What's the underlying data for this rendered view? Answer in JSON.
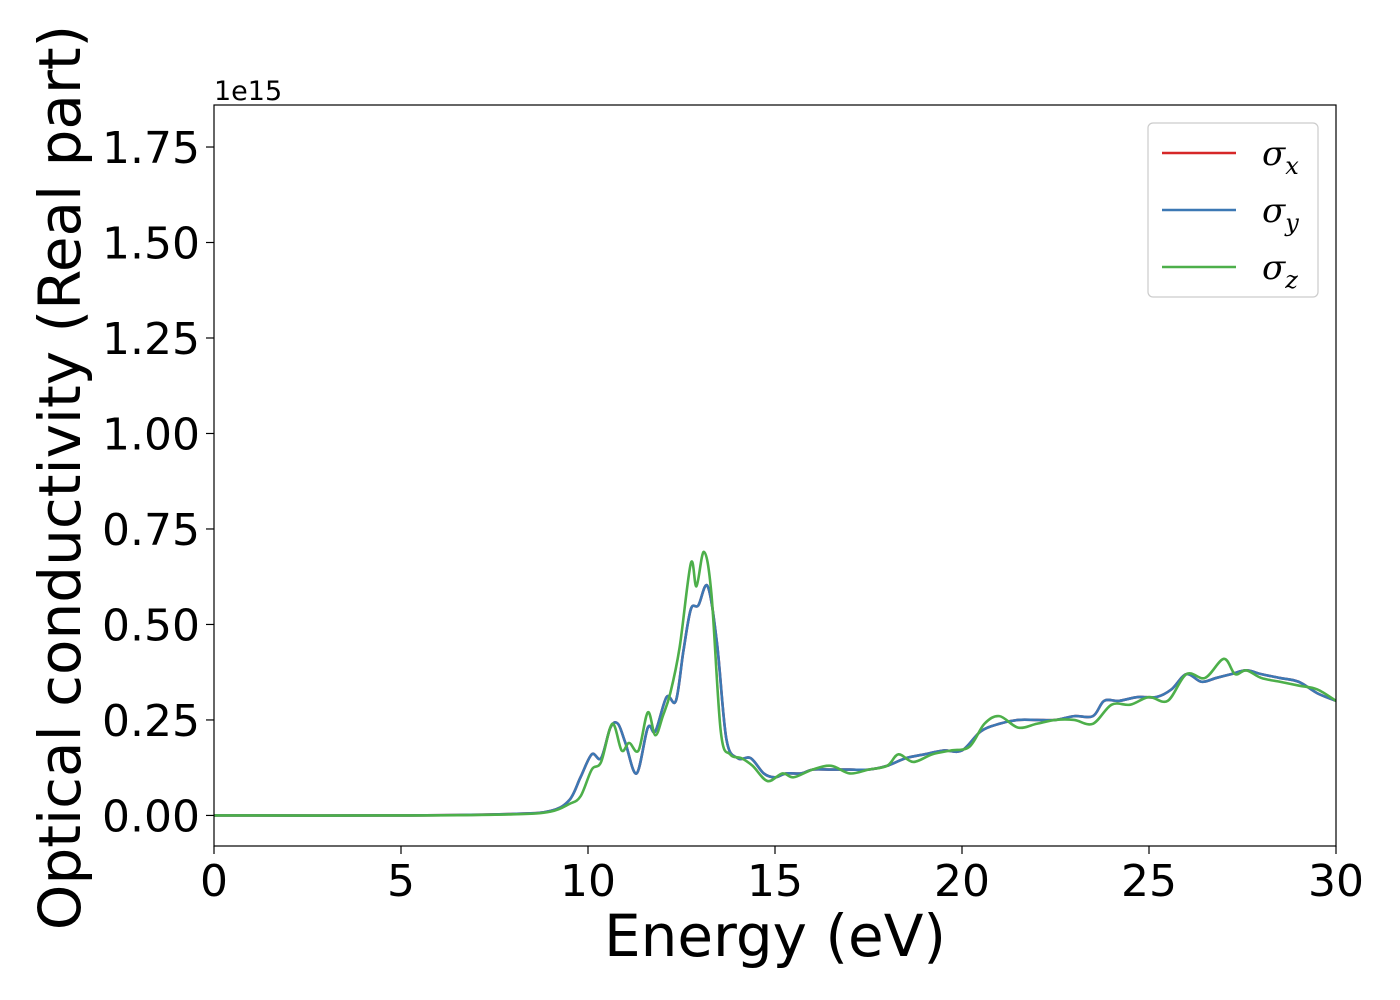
{
  "chart_data": {
    "type": "line",
    "xlabel": "Energy (eV)",
    "ylabel": "Optical conductivity (Real part)",
    "y_offset_text": "1e15",
    "xlim": [
      0,
      30
    ],
    "ylim": [
      -0.08,
      1.86
    ],
    "y_multiplier": 1000000000000000.0,
    "x_ticks": [
      0,
      5,
      10,
      15,
      20,
      25,
      30
    ],
    "x_tick_labels": [
      "0",
      "5",
      "10",
      "15",
      "20",
      "25",
      "30"
    ],
    "y_ticks": [
      0.0,
      0.25,
      0.5,
      0.75,
      1.0,
      1.25,
      1.5,
      1.75
    ],
    "y_tick_labels": [
      "0.00",
      "0.25",
      "0.50",
      "0.75",
      "1.00",
      "1.25",
      "1.50",
      "1.75"
    ],
    "grid": false,
    "legend_position": "top-right",
    "series": [
      {
        "name": "σ_x",
        "legend_symbol": "σ",
        "legend_sub": "x",
        "color": "#d62728",
        "x": [
          0,
          5,
          8,
          9,
          9.5,
          9.8,
          10.1,
          10.35,
          10.6,
          10.8,
          11.0,
          11.3,
          11.6,
          11.8,
          12.1,
          12.35,
          12.55,
          12.75,
          12.95,
          13.2,
          13.45,
          13.7,
          14.0,
          14.35,
          14.7,
          15.0,
          15.3,
          15.7,
          16.0,
          16.5,
          17.0,
          17.5,
          18.0,
          18.5,
          19.0,
          19.5,
          20.0,
          20.5,
          21.0,
          21.5,
          22.0,
          22.5,
          23.0,
          23.5,
          23.8,
          24.2,
          24.7,
          25.2,
          25.6,
          26.0,
          26.4,
          26.8,
          27.2,
          27.6,
          28.0,
          28.5,
          29.0,
          29.5,
          30.0
        ],
        "values": [
          0,
          0,
          0.004,
          0.012,
          0.04,
          0.1,
          0.16,
          0.15,
          0.23,
          0.24,
          0.19,
          0.11,
          0.23,
          0.22,
          0.31,
          0.3,
          0.43,
          0.54,
          0.55,
          0.6,
          0.45,
          0.2,
          0.15,
          0.15,
          0.11,
          0.1,
          0.11,
          0.11,
          0.12,
          0.12,
          0.12,
          0.12,
          0.13,
          0.15,
          0.16,
          0.17,
          0.17,
          0.22,
          0.24,
          0.25,
          0.25,
          0.25,
          0.26,
          0.26,
          0.3,
          0.3,
          0.31,
          0.31,
          0.33,
          0.37,
          0.35,
          0.36,
          0.37,
          0.38,
          0.37,
          0.36,
          0.35,
          0.32,
          0.3
        ]
      },
      {
        "name": "σ_y",
        "legend_symbol": "σ",
        "legend_sub": "y",
        "color": "#3c78b4",
        "x": [
          0,
          5,
          8,
          9,
          9.5,
          9.8,
          10.1,
          10.35,
          10.6,
          10.8,
          11.0,
          11.3,
          11.6,
          11.8,
          12.1,
          12.35,
          12.55,
          12.75,
          12.95,
          13.2,
          13.45,
          13.7,
          14.0,
          14.35,
          14.7,
          15.0,
          15.3,
          15.7,
          16.0,
          16.5,
          17.0,
          17.5,
          18.0,
          18.5,
          19.0,
          19.5,
          20.0,
          20.5,
          21.0,
          21.5,
          22.0,
          22.5,
          23.0,
          23.5,
          23.8,
          24.2,
          24.7,
          25.2,
          25.6,
          26.0,
          26.4,
          26.8,
          27.2,
          27.6,
          28.0,
          28.5,
          29.0,
          29.5,
          30.0
        ],
        "values": [
          0,
          0,
          0.004,
          0.012,
          0.04,
          0.1,
          0.16,
          0.15,
          0.23,
          0.24,
          0.19,
          0.11,
          0.23,
          0.22,
          0.31,
          0.3,
          0.43,
          0.54,
          0.55,
          0.6,
          0.45,
          0.2,
          0.15,
          0.15,
          0.11,
          0.1,
          0.11,
          0.11,
          0.12,
          0.12,
          0.12,
          0.12,
          0.13,
          0.15,
          0.16,
          0.17,
          0.17,
          0.22,
          0.24,
          0.25,
          0.25,
          0.25,
          0.26,
          0.26,
          0.3,
          0.3,
          0.31,
          0.31,
          0.33,
          0.37,
          0.35,
          0.36,
          0.37,
          0.38,
          0.37,
          0.36,
          0.35,
          0.32,
          0.3
        ]
      },
      {
        "name": "σ_z",
        "legend_symbol": "σ",
        "legend_sub": "z",
        "color": "#4daf4a",
        "x": [
          0,
          5,
          8,
          9,
          9.5,
          9.8,
          10.1,
          10.35,
          10.65,
          10.9,
          11.1,
          11.35,
          11.6,
          11.8,
          12.0,
          12.2,
          12.45,
          12.75,
          12.9,
          13.1,
          13.3,
          13.55,
          13.8,
          14.1,
          14.4,
          14.8,
          15.2,
          15.5,
          16.0,
          16.5,
          17.0,
          17.5,
          18.0,
          18.3,
          18.7,
          19.2,
          19.7,
          20.2,
          20.6,
          21.0,
          21.5,
          22.0,
          22.5,
          23.0,
          23.5,
          24.0,
          24.5,
          25.0,
          25.5,
          26.0,
          26.5,
          27.0,
          27.3,
          27.6,
          28.0,
          28.5,
          29.0,
          29.5,
          30.0
        ],
        "values": [
          0,
          0,
          0.003,
          0.01,
          0.03,
          0.05,
          0.12,
          0.14,
          0.24,
          0.17,
          0.19,
          0.17,
          0.27,
          0.21,
          0.26,
          0.32,
          0.44,
          0.66,
          0.6,
          0.69,
          0.58,
          0.22,
          0.16,
          0.15,
          0.13,
          0.09,
          0.11,
          0.1,
          0.12,
          0.13,
          0.11,
          0.12,
          0.13,
          0.16,
          0.14,
          0.16,
          0.17,
          0.18,
          0.24,
          0.26,
          0.23,
          0.24,
          0.25,
          0.25,
          0.24,
          0.29,
          0.29,
          0.31,
          0.3,
          0.37,
          0.36,
          0.41,
          0.37,
          0.38,
          0.36,
          0.35,
          0.34,
          0.33,
          0.3
        ]
      }
    ]
  }
}
